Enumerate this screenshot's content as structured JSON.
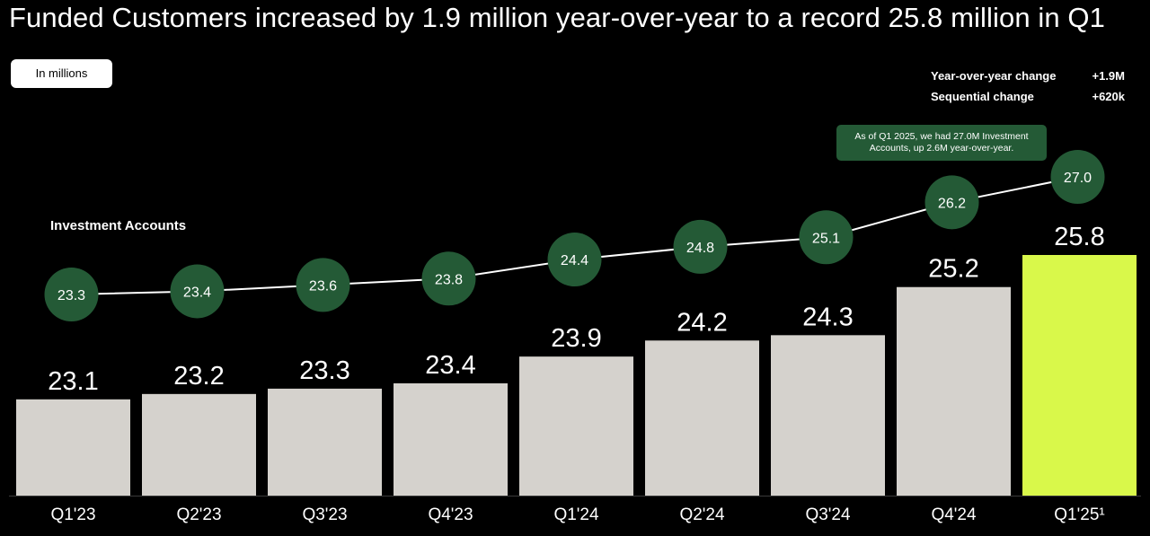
{
  "title": "Funded Customers increased by 1.9 million year-over-year to a record 25.8 million in Q1",
  "units": "In millions",
  "changes": [
    {
      "label": "Year-over-year change",
      "value": "+1.9M"
    },
    {
      "label": "Sequential change",
      "value": "+620k"
    }
  ],
  "callout": "As of Q1 2025, we had 27.0M Investment Accounts, up 2.6M year-over-year.",
  "colors": {
    "bar": "#d5d2cd",
    "highlight_bar": "#d9f84a",
    "circle": "#245a36",
    "line": "#ffffff",
    "background": "#000000"
  },
  "chart_data": {
    "type": "bar",
    "title": "Funded Customers increased by 1.9 million year-over-year to a record 25.8 million in Q1",
    "categories": [
      "Q1'23",
      "Q2'23",
      "Q3'23",
      "Q4'23",
      "Q1'24",
      "Q2'24",
      "Q3'24",
      "Q4'24",
      "Q1'25¹"
    ],
    "series": [
      {
        "values": [
          23.1,
          23.2,
          23.3,
          23.4,
          23.9,
          24.2,
          24.3,
          25.2,
          25.8
        ]
      },
      {
        "name": "Investment Accounts",
        "type": "line",
        "values": [
          23.3,
          23.4,
          23.6,
          23.8,
          24.4,
          24.8,
          25.1,
          26.2,
          27.0
        ]
      }
    ],
    "highlight_index": 8,
    "ylim": [
      21.3,
      27.0
    ],
    "grid": false
  }
}
